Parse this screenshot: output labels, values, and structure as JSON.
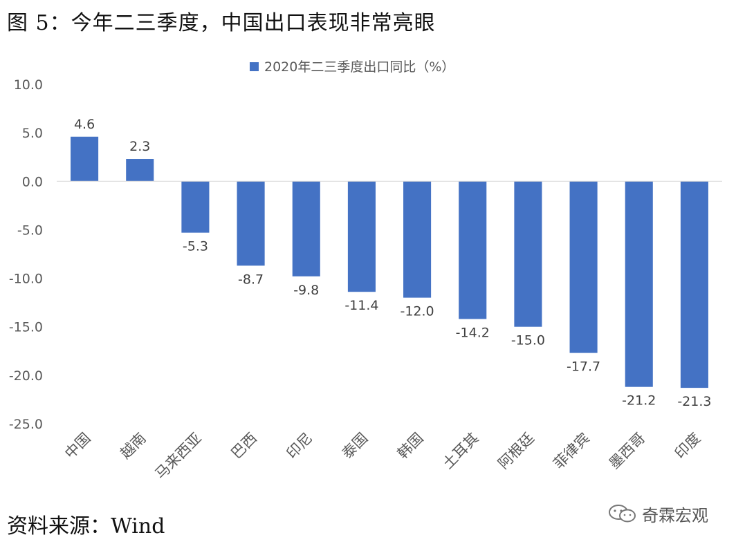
{
  "figure": {
    "title": "图 5：今年二三季度，中国出口表现非常亮眼",
    "source": "资料来源：Wind",
    "watermark": "奇霖宏观"
  },
  "chart_data": {
    "type": "bar",
    "title": "",
    "xlabel": "",
    "ylabel": "",
    "categories": [
      "中国",
      "越南",
      "马来西亚",
      "巴西",
      "印尼",
      "泰国",
      "韩国",
      "土耳其",
      "阿根廷",
      "菲律宾",
      "墨西哥",
      "印度"
    ],
    "series": [
      {
        "name": "2020年二三季度出口同比（%）",
        "values": [
          4.6,
          2.3,
          -5.3,
          -8.7,
          -9.8,
          -11.4,
          -12.0,
          -14.2,
          -15.0,
          -17.7,
          -21.2,
          -21.3
        ],
        "color": "#4472C4"
      }
    ],
    "value_labels": [
      "4.6",
      "2.3",
      "-5.3",
      "-8.7",
      "-9.8",
      "-11.4",
      "-12.0",
      "-14.2",
      "-15.0",
      "-17.7",
      "-21.2",
      "-21.3"
    ],
    "ylim": [
      -25,
      10
    ],
    "yticks": [
      10,
      5,
      0,
      -5,
      -10,
      -15,
      -20,
      -25
    ],
    "ytick_labels": [
      "10.0",
      "5.0",
      "0.0",
      "-5.0",
      "-10.0",
      "-15.0",
      "-20.0",
      "-25.0"
    ],
    "grid": false,
    "legend_position": "top-center"
  }
}
